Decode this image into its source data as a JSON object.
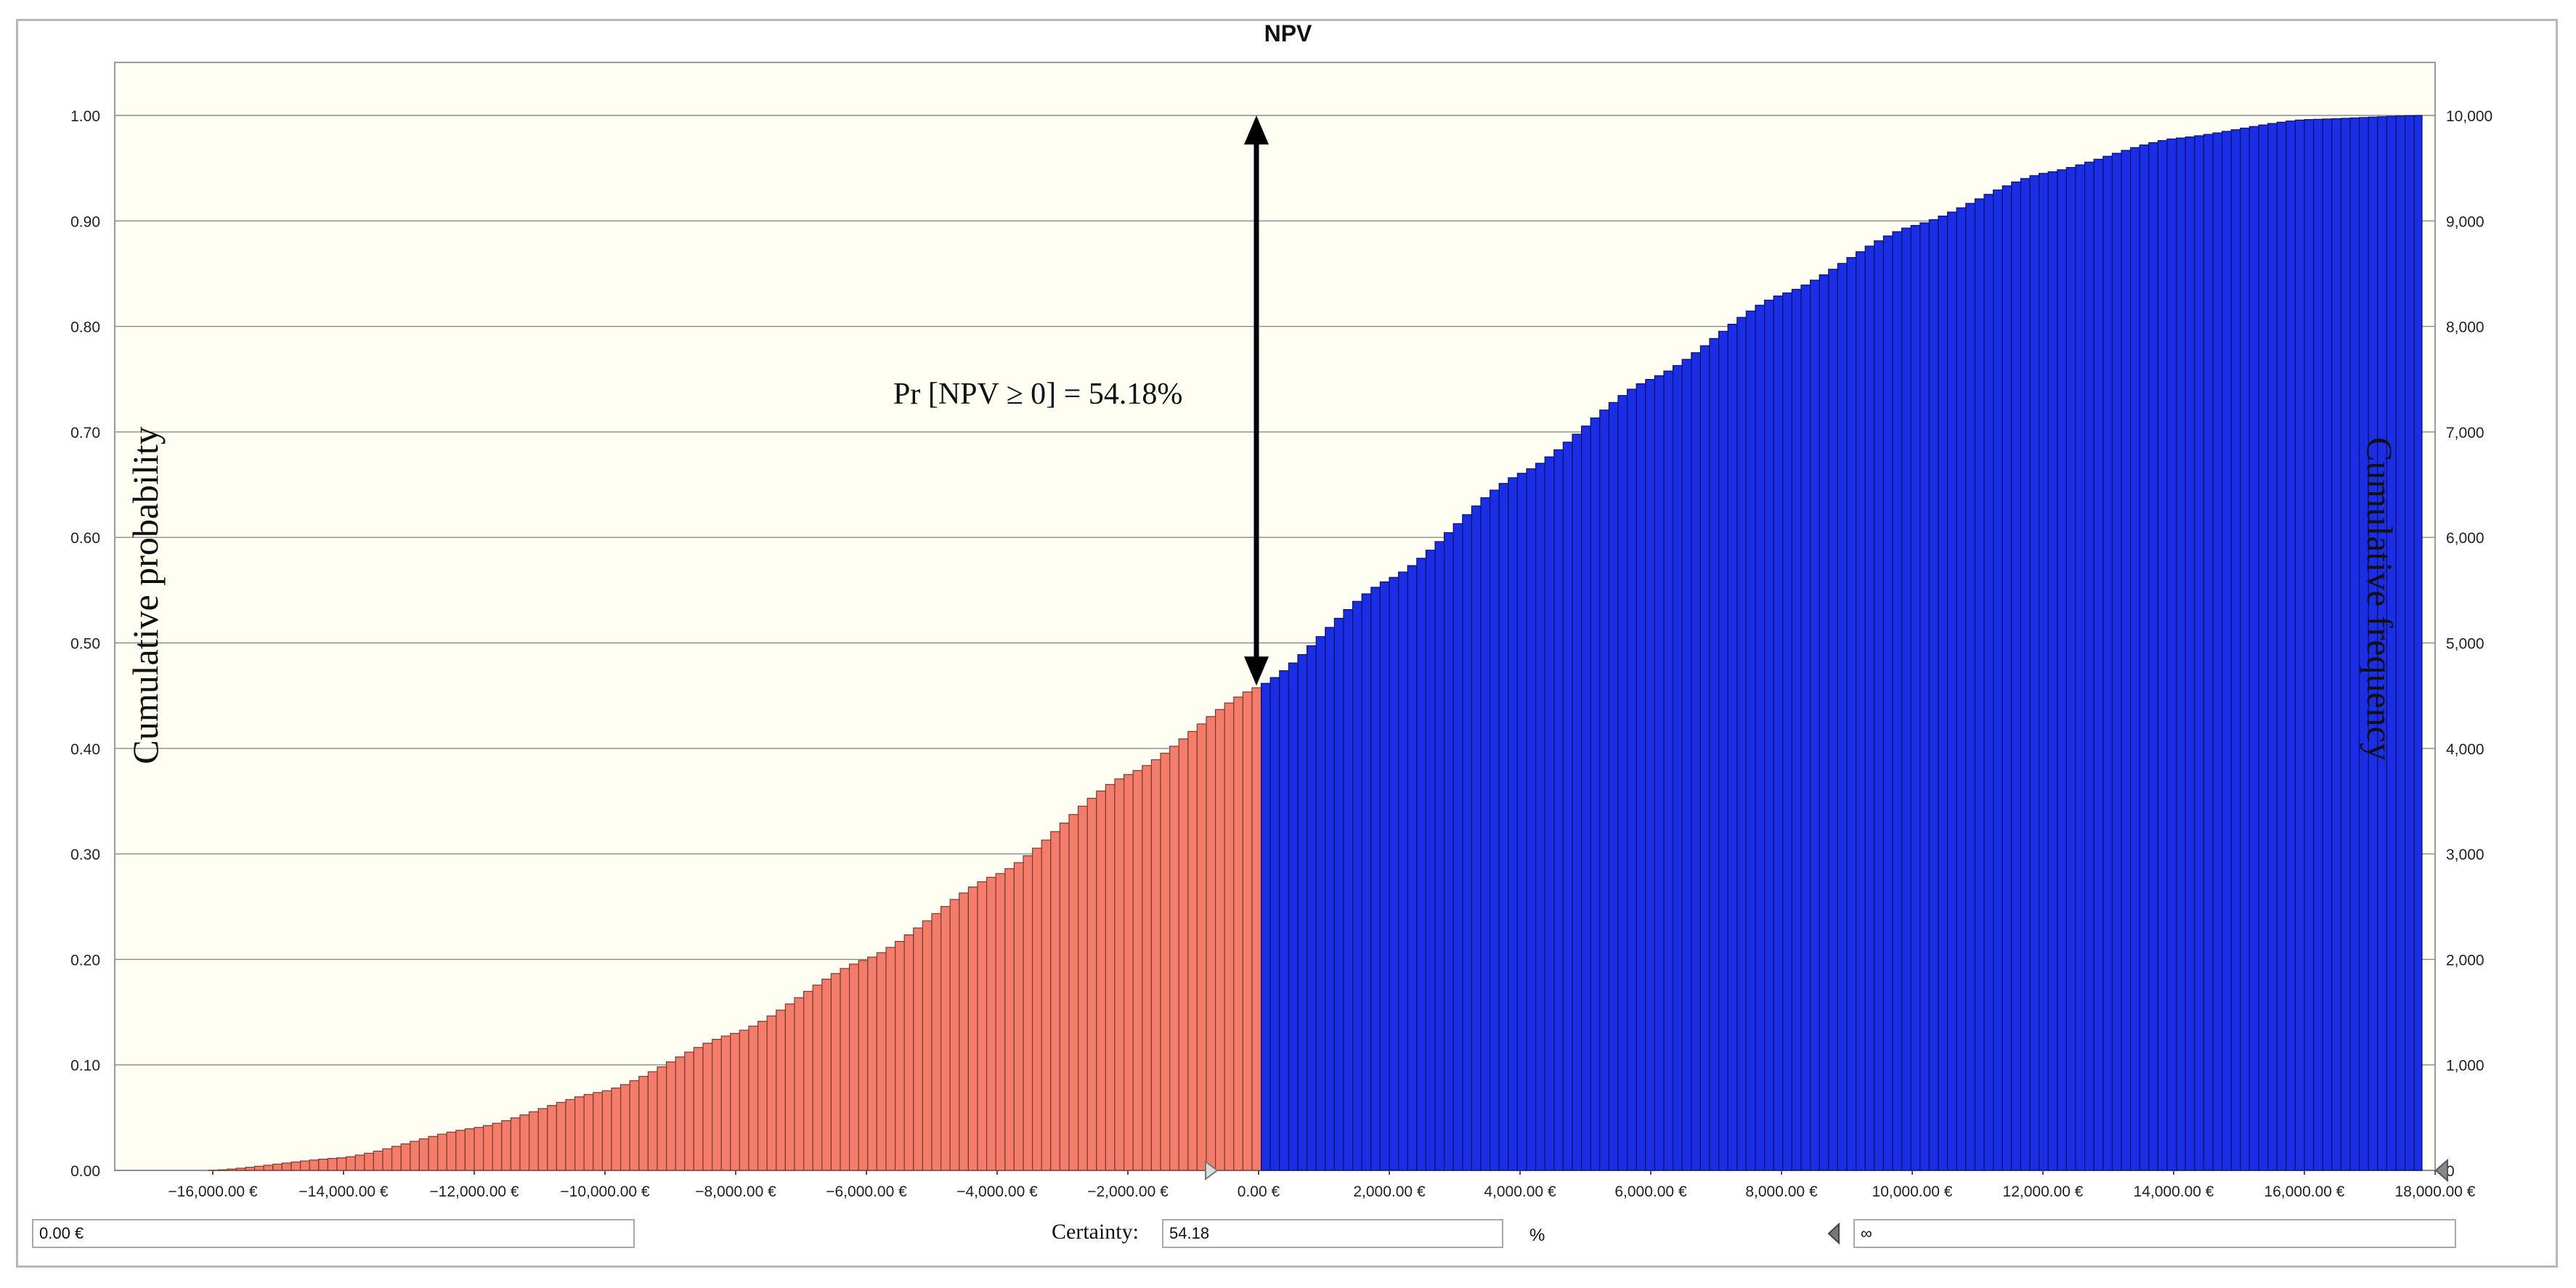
{
  "chart_data": {
    "type": "bar",
    "title": "NPV",
    "ylabel_left": "Cumulative probability",
    "ylabel_right": "Cumulative frequency",
    "xlim": [
      -17500,
      18000
    ],
    "ylim_left": [
      0,
      1
    ],
    "ylim_right": [
      0,
      10000
    ],
    "x_ticks": [
      "-16,000.00 €",
      "-14,000.00 €",
      "-12,000.00 €",
      "-10,000.00 €",
      "-8,000.00 €",
      "-6,000.00 €",
      "-4,000.00 €",
      "-2,000.00 €",
      "0.00 €",
      "2,000.00 €",
      "4,000.00 €",
      "6,000.00 €",
      "8,000.00 €",
      "10,000.00 €",
      "12,000.00 €",
      "14,000.00 €",
      "16,000.00 €",
      "18,000.00 €"
    ],
    "y_left_ticks": [
      "0.00",
      "0.10",
      "0.20",
      "0.30",
      "0.40",
      "0.50",
      "0.60",
      "0.70",
      "0.80",
      "0.90",
      "1.00"
    ],
    "y_right_ticks": [
      "0",
      "1,000",
      "2,000",
      "3,000",
      "4,000",
      "5,000",
      "6,000",
      "7,000",
      "8,000",
      "9,000",
      "10,000"
    ],
    "grid": true,
    "threshold_x": 0,
    "threshold_probability": 0.4582,
    "annotation": "Pr [NPV ≥ 0] = 54.18%",
    "x": [
      -16000,
      -14000,
      -12000,
      -10000,
      -8000,
      -6000,
      -4000,
      -2000,
      0,
      2000,
      4000,
      6000,
      8000,
      10000,
      12000,
      14000,
      16000,
      17800
    ],
    "series": [
      {
        "values": [
          0.0,
          0.012,
          0.04,
          0.075,
          0.13,
          0.2,
          0.28,
          0.375,
          0.4582,
          0.56,
          0.66,
          0.75,
          0.83,
          0.895,
          0.945,
          0.978,
          0.996,
          1.0
        ]
      }
    ],
    "colors": {
      "below_threshold": "#f47c6b",
      "above_threshold": "#1a2ee6",
      "plot_background": "#fffef2"
    }
  },
  "controls": {
    "left_value": "0.00 €",
    "certainty_label": "Certainty:",
    "certainty_value": "54.18",
    "percent_unit": "%",
    "right_value": "∞"
  }
}
